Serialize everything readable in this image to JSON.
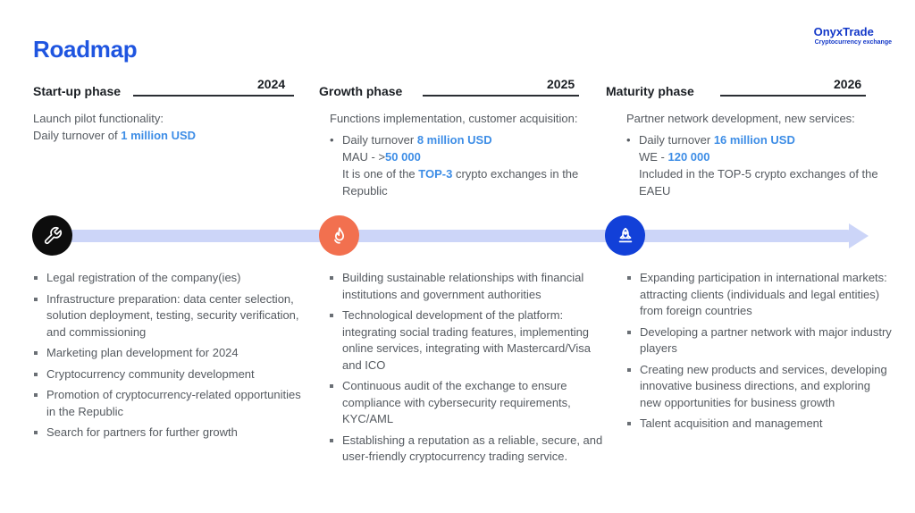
{
  "header": {
    "title": "Roadmap"
  },
  "brand": {
    "name": "OnyxTrade",
    "subtitle": "Cryptocurrency exchange"
  },
  "phases": [
    {
      "name": "Start-up phase",
      "year": "2024",
      "goal_intro": "Launch pilot functionality:",
      "goal_pre": "Daily turnover of ",
      "goal_value": "1 million USD",
      "tasks": [
        "Legal registration of the company(ies)",
        "Infrastructure preparation: data center selection, solution deployment, testing, security verification, and commissioning",
        "Marketing plan development for 2024",
        "Cryptocurrency community development",
        "Promotion of cryptocurrency-related opportunities in the Republic",
        "Search for partners for further growth"
      ]
    },
    {
      "name": "Growth phase",
      "year": "2025",
      "goal_intro": "Functions implementation, customer acquisition:",
      "bullet_pre": "Daily turnover ",
      "bullet_value": "8 million USD",
      "line2_pre": "MAU - >",
      "line2_value": "50 000",
      "line3_pre": "It is one of the ",
      "line3_value": "TOP-3",
      "line3_post": " crypto exchanges in the Republic",
      "tasks": [
        "Building sustainable relationships with financial institutions and government authorities",
        "Technological development of the platform: integrating social trading features, implementing online services, integrating with Mastercard/Visa and ICO",
        "Continuous audit of the exchange to ensure compliance with cybersecurity requirements, KYC/AML",
        "Establishing a reputation as a reliable, secure, and user-friendly cryptocurrency trading service."
      ]
    },
    {
      "name": "Maturity phase",
      "year": "2026",
      "goal_intro": "Partner network development, new services:",
      "bullet_pre": "Daily turnover ",
      "bullet_value": "16 million USD",
      "line2_pre": "WE - ",
      "line2_value": "120 000",
      "line3": "Included in the TOP-5 crypto exchanges of the EAEU",
      "tasks": [
        "Expanding participation in international markets: attracting clients (individuals and legal entities) from foreign countries",
        "Developing a partner network with major industry players",
        "Creating new products and services, developing innovative business directions, and exploring new opportunities for business growth",
        "Talent acquisition and management"
      ]
    }
  ],
  "icons": {
    "phase1": "wrench-icon",
    "phase2": "flame-icon",
    "phase3": "rocket-icon"
  },
  "colors": {
    "accent": "#1f55e0",
    "highlight": "#3d8de6",
    "track": "#ccd5f8",
    "phase1": "#0d0d0d",
    "phase2": "#f2704f",
    "phase3": "#1240d8"
  }
}
